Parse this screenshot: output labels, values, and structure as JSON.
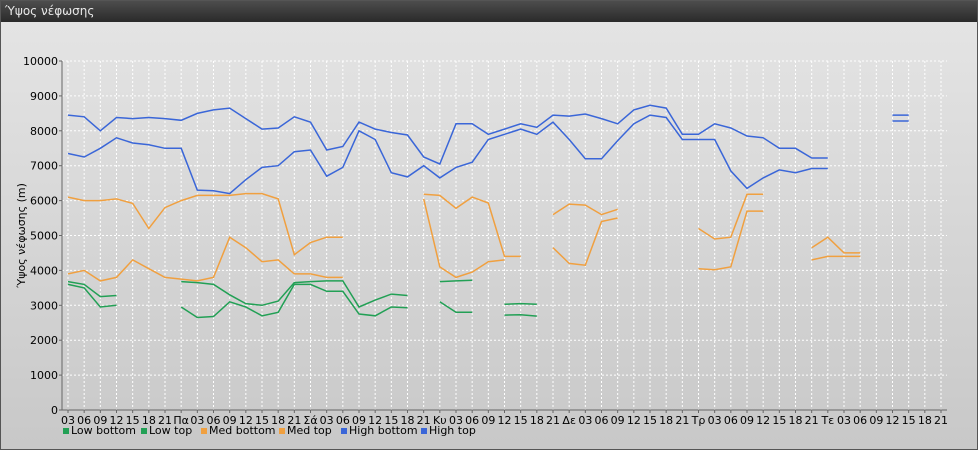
{
  "window": {
    "title": "Ύψος νέφωσης"
  },
  "colors": {
    "low_bottom": "#22a055",
    "low_top": "#22a055",
    "med_bottom": "#f0a040",
    "med_top": "#f0a040",
    "high_bottom": "#3a66d8",
    "high_top": "#3a66d8",
    "grid": "#ffffff"
  },
  "chart_data": {
    "type": "line",
    "title": "",
    "xlabel": "",
    "ylabel": "Ύψος νέφωσης (m)",
    "ylim": [
      0,
      10000
    ],
    "yticks": [
      0,
      1000,
      2000,
      3000,
      4000,
      5000,
      6000,
      7000,
      8000,
      9000,
      10000
    ],
    "grid": true,
    "legend_position": "bottom-left",
    "categories": [
      "03",
      "06",
      "09",
      "12",
      "15",
      "18",
      "21",
      "Πα",
      "03",
      "06",
      "09",
      "12",
      "15",
      "18",
      "21",
      "Σά",
      "03",
      "06",
      "09",
      "12",
      "15",
      "18",
      "21",
      "Κυ",
      "03",
      "06",
      "09",
      "12",
      "15",
      "18",
      "21",
      "Δε",
      "03",
      "06",
      "09",
      "12",
      "15",
      "18",
      "21",
      "Τρ",
      "03",
      "06",
      "09",
      "12",
      "15",
      "18",
      "21",
      "Τε",
      "03",
      "06",
      "09",
      "12",
      "15",
      "18",
      "21"
    ],
    "series": [
      {
        "name": "Low bottom",
        "color_key": "low_bottom",
        "values": [
          3600,
          3500,
          2950,
          3000,
          null,
          null,
          null,
          2950,
          2650,
          2680,
          3100,
          2950,
          2700,
          2800,
          3600,
          3600,
          3400,
          3400,
          2750,
          2700,
          2950,
          2930,
          null,
          3100,
          2800,
          2800,
          null,
          2720,
          2730,
          2690,
          null,
          null,
          null,
          null,
          null,
          null,
          null,
          null,
          null,
          null,
          null,
          null,
          null,
          null,
          null,
          null,
          null,
          null,
          null,
          null,
          null,
          null,
          null,
          null,
          null
        ]
      },
      {
        "name": "Low top",
        "color_key": "low_top",
        "values": [
          3680,
          3600,
          3250,
          3280,
          null,
          null,
          null,
          3680,
          3650,
          3600,
          3300,
          3050,
          3000,
          3120,
          3650,
          3680,
          3700,
          3700,
          2950,
          3150,
          3320,
          3280,
          null,
          3680,
          3700,
          3720,
          null,
          3030,
          3050,
          3030,
          null,
          null,
          null,
          null,
          null,
          null,
          null,
          null,
          null,
          null,
          null,
          null,
          null,
          null,
          null,
          null,
          null,
          null,
          null,
          null,
          null,
          null,
          null,
          null,
          null
        ]
      },
      {
        "name": "Med bottom",
        "color_key": "med_bottom",
        "values": [
          3900,
          4000,
          3700,
          3800,
          4300,
          4050,
          3800,
          3750,
          3700,
          3800,
          4950,
          4650,
          4250,
          4300,
          3900,
          3900,
          3800,
          3800,
          null,
          null,
          null,
          null,
          6050,
          4100,
          3800,
          3950,
          4250,
          4300,
          null,
          null,
          4650,
          4200,
          4150,
          5400,
          5500,
          null,
          null,
          null,
          null,
          4050,
          4020,
          4100,
          5700,
          5700,
          null,
          null,
          4300,
          4400,
          4400,
          4400,
          null,
          null,
          null,
          null,
          null
        ]
      },
      {
        "name": "Med top",
        "color_key": "med_top",
        "values": [
          6100,
          6000,
          6000,
          6050,
          5920,
          5200,
          5800,
          6000,
          6150,
          6150,
          6150,
          6200,
          6200,
          6050,
          4450,
          4800,
          4950,
          4950,
          null,
          null,
          null,
          null,
          6180,
          6150,
          5780,
          6100,
          5930,
          4400,
          4400,
          null,
          5600,
          5900,
          5870,
          5600,
          5750,
          null,
          null,
          null,
          null,
          5200,
          4900,
          4950,
          6180,
          6180,
          null,
          null,
          4650,
          4950,
          4500,
          4500,
          null,
          null,
          null,
          null,
          null
        ]
      },
      {
        "name": "High bottom",
        "color_key": "high_bottom",
        "values": [
          7350,
          7250,
          7500,
          7800,
          7650,
          7600,
          7500,
          7500,
          6300,
          6280,
          6200,
          6600,
          6950,
          7000,
          7400,
          7450,
          6700,
          6950,
          8000,
          7750,
          6800,
          6680,
          7000,
          6650,
          6950,
          7100,
          7750,
          7900,
          8050,
          7900,
          8250,
          7750,
          7200,
          7200,
          7720,
          8200,
          8450,
          8380,
          7750,
          7750,
          7750,
          6850,
          6350,
          6650,
          6880,
          6800,
          6920,
          6920,
          null,
          null,
          null,
          8280,
          8280,
          null,
          null
        ]
      },
      {
        "name": "High top",
        "color_key": "high_top",
        "values": [
          8450,
          8400,
          8000,
          8380,
          8350,
          8380,
          8350,
          8300,
          8500,
          8600,
          8650,
          8350,
          8050,
          8080,
          8400,
          8250,
          7450,
          7550,
          8250,
          8050,
          7950,
          7880,
          7250,
          7050,
          8200,
          8200,
          7900,
          8050,
          8200,
          8100,
          8450,
          8420,
          8480,
          8350,
          8200,
          8600,
          8730,
          8650,
          7900,
          7900,
          8200,
          8080,
          7850,
          7800,
          7500,
          7500,
          7220,
          7220,
          null,
          null,
          null,
          8450,
          8450,
          null,
          null
        ]
      }
    ]
  },
  "legend": {
    "items": [
      {
        "label": "Low bottom",
        "color_key": "low_bottom"
      },
      {
        "label": "Low top",
        "color_key": "low_top"
      },
      {
        "label": "Med bottom",
        "color_key": "med_bottom"
      },
      {
        "label": "Med top",
        "color_key": "med_top"
      },
      {
        "label": "High bottom",
        "color_key": "high_bottom"
      },
      {
        "label": "High top",
        "color_key": "high_top"
      }
    ]
  }
}
